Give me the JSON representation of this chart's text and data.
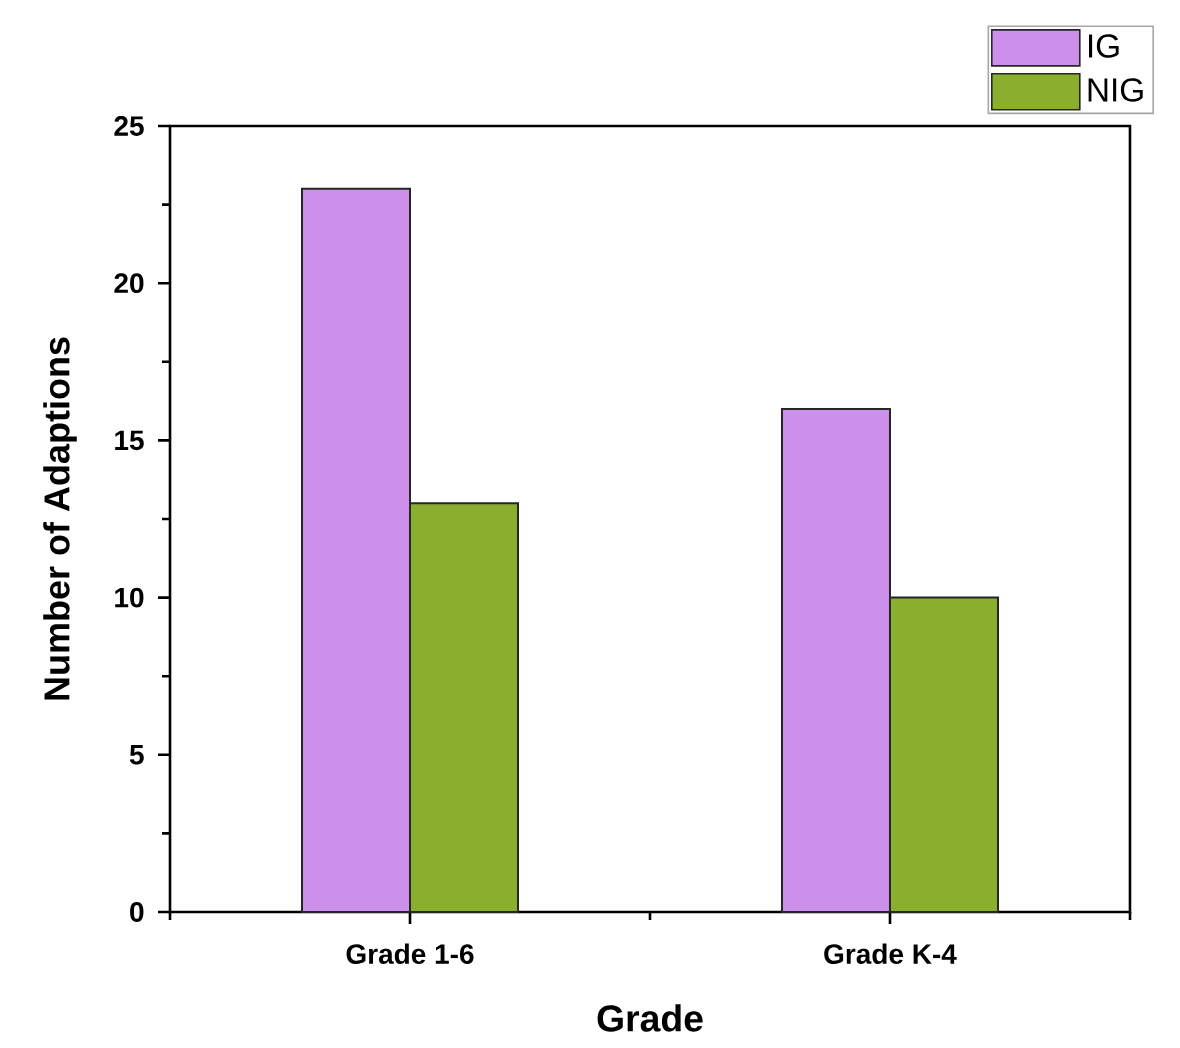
{
  "chart_data": {
    "type": "bar",
    "xlabel": "Grade",
    "ylabel": "Number of Adaptions",
    "categories": [
      "Grade 1-6",
      "Grade K-4"
    ],
    "series": [
      {
        "name": "IG",
        "color": "#cc8fec",
        "values": [
          23,
          16
        ]
      },
      {
        "name": "NIG",
        "color": "#8aae2d",
        "values": [
          13,
          10
        ]
      }
    ],
    "ylim": [
      0,
      25
    ],
    "yticks": [
      0,
      5,
      10,
      15,
      20,
      25
    ],
    "legend": "top right"
  }
}
